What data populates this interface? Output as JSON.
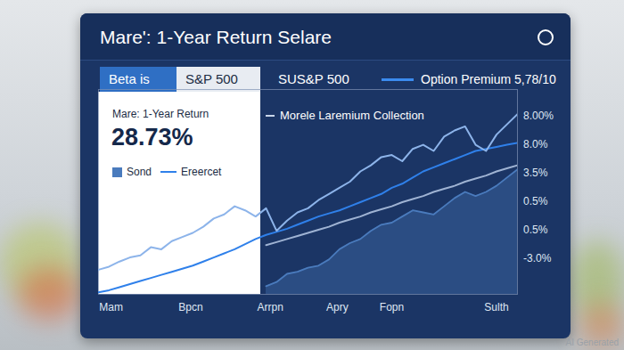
{
  "chart_data": {
    "type": "line",
    "title": "Mare': 1-Year Return Selare",
    "tabs": [
      "Beta is",
      "S&P 500",
      "SUS&P 500"
    ],
    "header_legend": "Option Premium 5,78/10",
    "kpi_label": "Mare: 1-Year Return",
    "kpi_text": "28.73%",
    "annotations": [
      "Morele Laremium Collection"
    ],
    "right_labels": [
      "8.00%",
      "8.0%",
      "3.5%",
      "0.5%",
      "0.5%",
      "-3.0%"
    ],
    "watermark": "AI Generated",
    "x": [
      0,
      2.5,
      5,
      7.5,
      10,
      12.5,
      15,
      17.5,
      20,
      22.5,
      25,
      27.5,
      30,
      32.5,
      35,
      37.5,
      40,
      42.5,
      45,
      47.5,
      50,
      52.5,
      55,
      57.5,
      60,
      62.5,
      65,
      67.5,
      70,
      72.5,
      75,
      77.5,
      80,
      82.5,
      85,
      87.5,
      90,
      92.5,
      95,
      97.5,
      100
    ],
    "series": [
      {
        "name": "Sond",
        "type": "area",
        "color": "#4a7bbd",
        "values": [
          null,
          null,
          null,
          null,
          null,
          null,
          null,
          null,
          null,
          null,
          null,
          null,
          null,
          null,
          null,
          null,
          4,
          6,
          10,
          11,
          13,
          14,
          17,
          22,
          25,
          27,
          31,
          34,
          35,
          38,
          41,
          40,
          39,
          43,
          47,
          50,
          48,
          50,
          53,
          57,
          61
        ]
      },
      {
        "type": "line",
        "color": "#9fb3d3",
        "values": [
          null,
          null,
          null,
          null,
          null,
          null,
          null,
          null,
          null,
          null,
          null,
          null,
          null,
          null,
          null,
          null,
          24,
          25.5,
          27,
          28.5,
          30,
          31.5,
          33,
          35,
          36.5,
          38,
          40,
          41.5,
          43,
          45,
          46.5,
          48,
          50,
          51.5,
          53,
          55,
          56.5,
          58,
          60,
          61.5,
          63
        ]
      },
      {
        "name": "Ereercet",
        "type": "line",
        "color": "#2f80ea",
        "values": [
          1,
          2,
          3.5,
          5,
          6.5,
          8,
          9.5,
          11,
          12.5,
          14,
          16,
          18,
          20,
          22,
          24.5,
          27,
          29,
          30.5,
          32,
          34,
          36,
          38,
          39.5,
          41,
          43,
          45,
          47,
          49,
          52,
          54,
          57,
          60,
          62,
          64,
          66,
          68,
          70,
          71,
          72,
          73,
          74
        ]
      },
      {
        "type": "line",
        "color": "#8db4ea",
        "values": [
          12,
          13.5,
          16,
          18,
          19,
          23,
          22,
          26,
          28,
          30,
          33,
          37,
          39,
          43,
          41,
          38,
          42,
          31,
          36,
          40,
          42,
          46,
          49,
          52,
          55,
          60,
          63,
          67,
          68,
          65,
          71,
          73,
          70,
          77,
          80,
          82,
          73,
          70,
          78,
          83,
          88
        ]
      }
    ],
    "xlim": [
      0,
      100
    ],
    "xticks": [
      {
        "value": 3,
        "label": "Mam"
      },
      {
        "value": 22,
        "label": "Bpcn"
      },
      {
        "value": 41,
        "label": "Arrpn"
      },
      {
        "value": 57,
        "label": "Apry"
      },
      {
        "value": 70,
        "label": "Fopn"
      },
      {
        "value": 95,
        "label": "Sulth"
      }
    ],
    "ylim": [
      0,
      100
    ],
    "tick_labels": "x",
    "grid": false,
    "legend": "top-left"
  }
}
